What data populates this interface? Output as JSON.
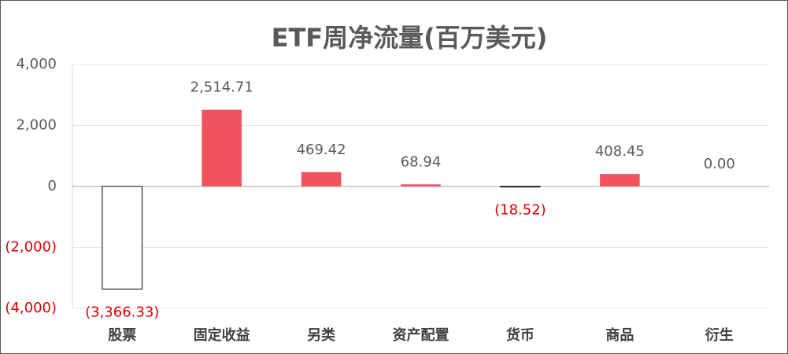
{
  "chart_data": {
    "type": "bar",
    "title": "ETF周净流量(百万美元)",
    "categories": [
      "股票",
      "固定收益",
      "另类",
      "资产配置",
      "货币",
      "商品",
      "衍生"
    ],
    "values": [
      -3366.33,
      2514.71,
      469.42,
      68.94,
      -18.52,
      408.45,
      0.0
    ],
    "value_labels": [
      "(3,366.33)",
      "2,514.71",
      "469.42",
      "68.94",
      "(18.52)",
      "408.45",
      "0.00"
    ],
    "color": "#f0525e",
    "negative_fill": "#ffffff",
    "negative_stroke": "#000000",
    "label_color": "#595959",
    "negative_label_color": "#e00000",
    "ylim": [
      -4000,
      4000
    ],
    "yticks": [
      {
        "value": -4000,
        "label": "(4,000)"
      },
      {
        "value": -2000,
        "label": "(2,000)"
      },
      0,
      {
        "value": 2000,
        "label": "2,000"
      },
      {
        "value": 4000,
        "label": "4,000"
      }
    ],
    "grid": true
  }
}
